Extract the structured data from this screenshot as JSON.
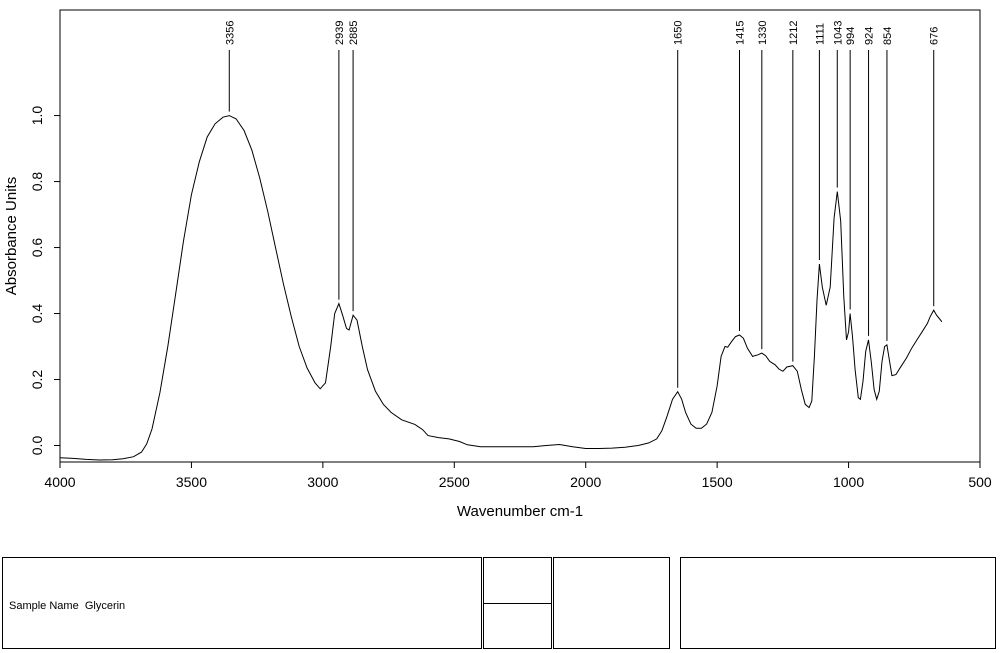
{
  "chart_data": {
    "type": "line",
    "xlabel": "Wavenumber cm-1",
    "ylabel": "Absorbance Units",
    "xlim": [
      4000,
      500
    ],
    "ylim": [
      -0.05,
      1.32
    ],
    "x_reversed": true,
    "grid": false,
    "x_ticks": [
      4000,
      3500,
      3000,
      2500,
      2000,
      1500,
      1000,
      500
    ],
    "y_ticks": [
      0.0,
      0.2,
      0.4,
      0.6,
      0.8,
      1.0
    ],
    "y_tick_labels": [
      "0.0",
      "0.2",
      "0.4",
      "0.6",
      "0.8",
      "1.0"
    ],
    "series": [
      {
        "points": [
          [
            4000,
            -0.037
          ],
          [
            3950,
            -0.039
          ],
          [
            3900,
            -0.042
          ],
          [
            3850,
            -0.044
          ],
          [
            3800,
            -0.043
          ],
          [
            3760,
            -0.04
          ],
          [
            3720,
            -0.034
          ],
          [
            3690,
            -0.02
          ],
          [
            3670,
            0.005
          ],
          [
            3650,
            0.05
          ],
          [
            3620,
            0.16
          ],
          [
            3590,
            0.3
          ],
          [
            3560,
            0.46
          ],
          [
            3530,
            0.62
          ],
          [
            3500,
            0.76
          ],
          [
            3470,
            0.86
          ],
          [
            3440,
            0.935
          ],
          [
            3410,
            0.975
          ],
          [
            3380,
            0.995
          ],
          [
            3356,
            1.0
          ],
          [
            3330,
            0.99
          ],
          [
            3300,
            0.955
          ],
          [
            3270,
            0.895
          ],
          [
            3240,
            0.81
          ],
          [
            3210,
            0.71
          ],
          [
            3180,
            0.6
          ],
          [
            3150,
            0.49
          ],
          [
            3120,
            0.39
          ],
          [
            3090,
            0.3
          ],
          [
            3060,
            0.235
          ],
          [
            3030,
            0.19
          ],
          [
            3010,
            0.172
          ],
          [
            2990,
            0.19
          ],
          [
            2970,
            0.3
          ],
          [
            2955,
            0.4
          ],
          [
            2939,
            0.43
          ],
          [
            2925,
            0.395
          ],
          [
            2910,
            0.355
          ],
          [
            2900,
            0.35
          ],
          [
            2885,
            0.395
          ],
          [
            2870,
            0.38
          ],
          [
            2850,
            0.3
          ],
          [
            2830,
            0.23
          ],
          [
            2800,
            0.165
          ],
          [
            2770,
            0.125
          ],
          [
            2740,
            0.1
          ],
          [
            2700,
            0.078
          ],
          [
            2650,
            0.064
          ],
          [
            2620,
            0.048
          ],
          [
            2600,
            0.03
          ],
          [
            2560,
            0.024
          ],
          [
            2520,
            0.02
          ],
          [
            2480,
            0.012
          ],
          [
            2450,
            0.002
          ],
          [
            2400,
            -0.004
          ],
          [
            2300,
            -0.004
          ],
          [
            2200,
            -0.004
          ],
          [
            2150,
            0.0
          ],
          [
            2100,
            0.003
          ],
          [
            2050,
            -0.004
          ],
          [
            2000,
            -0.009
          ],
          [
            1950,
            -0.009
          ],
          [
            1900,
            -0.008
          ],
          [
            1850,
            -0.005
          ],
          [
            1800,
            0.0
          ],
          [
            1760,
            0.008
          ],
          [
            1730,
            0.02
          ],
          [
            1710,
            0.045
          ],
          [
            1690,
            0.09
          ],
          [
            1670,
            0.14
          ],
          [
            1650,
            0.163
          ],
          [
            1635,
            0.14
          ],
          [
            1620,
            0.1
          ],
          [
            1600,
            0.065
          ],
          [
            1580,
            0.052
          ],
          [
            1560,
            0.052
          ],
          [
            1540,
            0.065
          ],
          [
            1520,
            0.1
          ],
          [
            1500,
            0.18
          ],
          [
            1485,
            0.27
          ],
          [
            1470,
            0.3
          ],
          [
            1460,
            0.298
          ],
          [
            1445,
            0.315
          ],
          [
            1430,
            0.33
          ],
          [
            1415,
            0.335
          ],
          [
            1400,
            0.325
          ],
          [
            1385,
            0.295
          ],
          [
            1365,
            0.27
          ],
          [
            1345,
            0.275
          ],
          [
            1330,
            0.28
          ],
          [
            1315,
            0.272
          ],
          [
            1300,
            0.255
          ],
          [
            1280,
            0.245
          ],
          [
            1265,
            0.232
          ],
          [
            1250,
            0.225
          ],
          [
            1235,
            0.238
          ],
          [
            1212,
            0.242
          ],
          [
            1195,
            0.225
          ],
          [
            1180,
            0.17
          ],
          [
            1165,
            0.125
          ],
          [
            1150,
            0.115
          ],
          [
            1140,
            0.135
          ],
          [
            1130,
            0.27
          ],
          [
            1120,
            0.44
          ],
          [
            1111,
            0.55
          ],
          [
            1100,
            0.48
          ],
          [
            1085,
            0.425
          ],
          [
            1070,
            0.48
          ],
          [
            1055,
            0.69
          ],
          [
            1043,
            0.77
          ],
          [
            1030,
            0.68
          ],
          [
            1018,
            0.45
          ],
          [
            1008,
            0.32
          ],
          [
            1000,
            0.345
          ],
          [
            994,
            0.4
          ],
          [
            985,
            0.33
          ],
          [
            975,
            0.23
          ],
          [
            963,
            0.145
          ],
          [
            955,
            0.14
          ],
          [
            945,
            0.195
          ],
          [
            935,
            0.285
          ],
          [
            924,
            0.32
          ],
          [
            913,
            0.25
          ],
          [
            903,
            0.17
          ],
          [
            893,
            0.14
          ],
          [
            883,
            0.165
          ],
          [
            873,
            0.255
          ],
          [
            863,
            0.3
          ],
          [
            854,
            0.305
          ],
          [
            845,
            0.26
          ],
          [
            835,
            0.212
          ],
          [
            820,
            0.215
          ],
          [
            800,
            0.24
          ],
          [
            780,
            0.265
          ],
          [
            760,
            0.295
          ],
          [
            740,
            0.32
          ],
          [
            720,
            0.345
          ],
          [
            700,
            0.37
          ],
          [
            690,
            0.39
          ],
          [
            676,
            0.41
          ],
          [
            665,
            0.395
          ],
          [
            655,
            0.385
          ],
          [
            645,
            0.375
          ]
        ]
      }
    ],
    "peaks": [
      {
        "label": "3356",
        "x": 3356
      },
      {
        "label": "2939",
        "x": 2939
      },
      {
        "label": "2885",
        "x": 2885
      },
      {
        "label": "1650",
        "x": 1650
      },
      {
        "label": "1415",
        "x": 1415
      },
      {
        "label": "1330",
        "x": 1330
      },
      {
        "label": "1212",
        "x": 1212
      },
      {
        "label": "1111",
        "x": 1111
      },
      {
        "label": "1043",
        "x": 1043
      },
      {
        "label": "994",
        "x": 994
      },
      {
        "label": "924",
        "x": 924
      },
      {
        "label": "854",
        "x": 854
      },
      {
        "label": "676",
        "x": 676
      }
    ]
  },
  "info_panel": {
    "sample_name_label": "Sample Name",
    "sample_name_value": "Glycerin"
  },
  "colors": {
    "line": "#000000",
    "axis": "#000000",
    "background": "#ffffff"
  }
}
